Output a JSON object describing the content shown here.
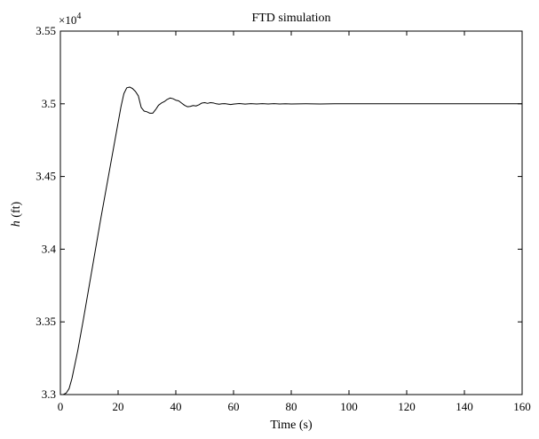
{
  "chart_data": {
    "type": "line",
    "title": "FTD simulation",
    "xlabel": "Time (s)",
    "ylabel_var": "h",
    "ylabel_unit": "(ft)",
    "y_multiplier": "×10",
    "y_multiplier_exp": "4",
    "xlim": [
      0,
      160
    ],
    "ylim": [
      3.3,
      3.55
    ],
    "x_ticks": [
      0,
      20,
      40,
      60,
      80,
      100,
      120,
      140,
      160
    ],
    "x_tick_labels": [
      "0",
      "20",
      "40",
      "60",
      "80",
      "100",
      "120",
      "140",
      "160"
    ],
    "y_ticks": [
      3.3,
      3.35,
      3.4,
      3.45,
      3.5,
      3.55
    ],
    "y_tick_labels": [
      "3.3",
      "3.35",
      "3.4",
      "3.45",
      "3.5",
      "3.55"
    ],
    "grid": false,
    "series": [
      {
        "color": "#000000",
        "x": [
          0,
          1,
          2,
          3,
          4,
          6,
          8,
          10,
          12,
          14,
          16,
          18,
          20,
          21,
          22,
          23,
          24,
          25,
          26,
          27,
          28,
          29,
          30,
          31,
          32,
          33,
          34,
          35,
          36,
          37,
          38,
          39,
          40,
          41,
          42,
          43,
          44,
          45,
          46,
          47,
          48,
          49,
          50,
          51,
          52,
          53,
          54,
          55,
          56,
          57,
          58,
          59,
          60,
          62,
          64,
          66,
          68,
          70,
          72,
          74,
          76,
          78,
          80,
          85,
          90,
          95,
          100,
          105,
          110,
          120,
          130,
          140,
          150,
          160
        ],
        "y": [
          3.3,
          3.3,
          3.301,
          3.304,
          3.311,
          3.33,
          3.352,
          3.375,
          3.398,
          3.421,
          3.443,
          3.465,
          3.487,
          3.498,
          3.507,
          3.511,
          3.5115,
          3.5105,
          3.5085,
          3.5055,
          3.4975,
          3.495,
          3.4945,
          3.4935,
          3.4935,
          3.496,
          3.499,
          3.5005,
          3.5015,
          3.503,
          3.504,
          3.5035,
          3.5025,
          3.502,
          3.5005,
          3.499,
          3.498,
          3.4982,
          3.4988,
          3.4985,
          3.4993,
          3.5005,
          3.5008,
          3.5003,
          3.5008,
          3.5006,
          3.5,
          3.4997,
          3.5,
          3.5001,
          3.4998,
          3.4995,
          3.4998,
          3.5002,
          3.4998,
          3.5001,
          3.4999,
          3.5001,
          3.4999,
          3.5001,
          3.4999,
          3.5,
          3.4999,
          3.5,
          3.4999,
          3.5,
          3.5,
          3.5,
          3.5,
          3.5,
          3.5,
          3.5,
          3.5,
          3.5
        ]
      }
    ]
  }
}
